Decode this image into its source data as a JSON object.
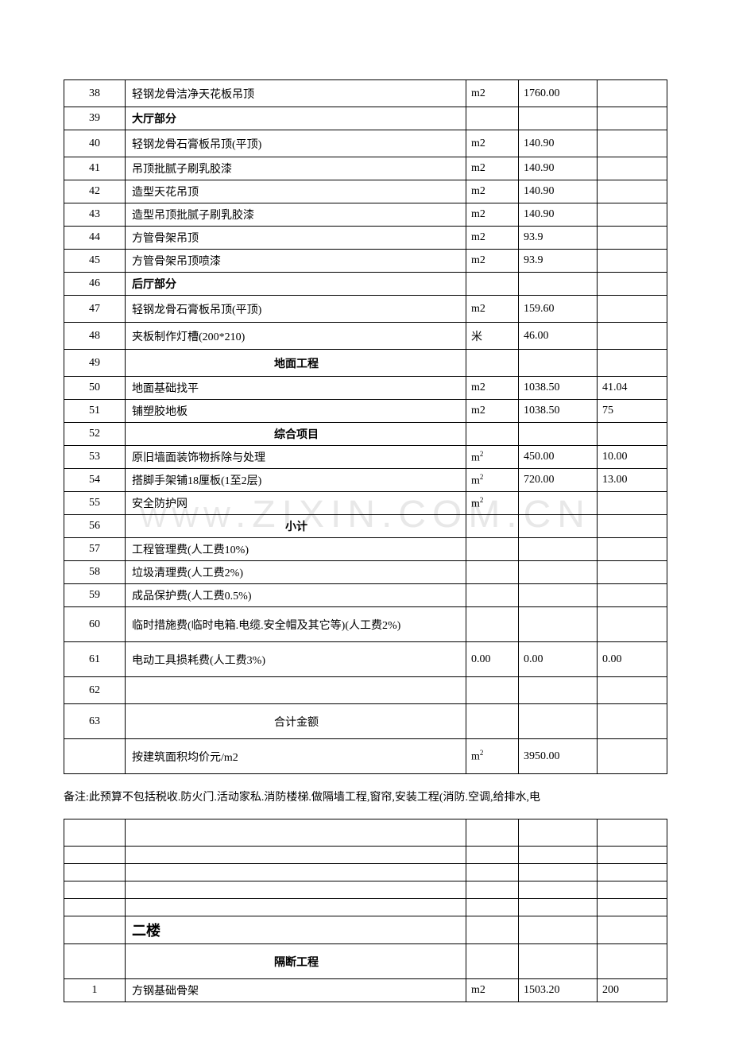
{
  "watermark": "WWW.ZIXIN.COM.CN",
  "table1": {
    "rows": [
      {
        "id": "38",
        "desc": "轻钢龙骨洁净天花板吊顶",
        "unit": "m2",
        "qty": "1760.00",
        "price": "",
        "h": "tall"
      },
      {
        "id": "39",
        "desc": "大厅部分",
        "unit": "",
        "qty": "",
        "price": "",
        "bold": true
      },
      {
        "id": "40",
        "desc": "轻钢龙骨石膏板吊顶(平顶)",
        "unit": "m2",
        "qty": "140.90",
        "price": "",
        "h": "tall"
      },
      {
        "id": "41",
        "desc": "吊顶批腻子刷乳胶漆",
        "unit": "m2",
        "qty": "140.90",
        "price": ""
      },
      {
        "id": "42",
        "desc": "造型天花吊顶",
        "unit": "m2",
        "qty": "140.90",
        "price": ""
      },
      {
        "id": "43",
        "desc": "造型吊顶批腻子刷乳胶漆",
        "unit": "m2",
        "qty": "140.90",
        "price": ""
      },
      {
        "id": "44",
        "desc": "方管骨架吊顶",
        "unit": "m2",
        "qty": "93.9",
        "price": ""
      },
      {
        "id": "45",
        "desc": "方管骨架吊顶喷漆",
        "unit": "m2",
        "qty": "93.9",
        "price": ""
      },
      {
        "id": "46",
        "desc": "后厅部分",
        "unit": "",
        "qty": "",
        "price": "",
        "bold": true
      },
      {
        "id": "47",
        "desc": "轻钢龙骨石膏板吊顶(平顶)",
        "unit": "m2",
        "qty": "159.60",
        "price": "",
        "h": "tall"
      },
      {
        "id": "48",
        "desc": "夹板制作灯槽(200*210)",
        "unit": "米",
        "qty": "46.00",
        "price": "",
        "h": "tall"
      },
      {
        "id": "49",
        "desc": "地面工程",
        "unit": "",
        "qty": "",
        "price": "",
        "center": true,
        "bold": true,
        "h": "tall"
      },
      {
        "id": "50",
        "desc": "地面基础找平",
        "unit": "m2",
        "qty": "1038.50",
        "price": "41.04"
      },
      {
        "id": "51",
        "desc": "铺塑胶地板",
        "unit": "m2",
        "qty": "1038.50",
        "price": "75"
      },
      {
        "id": "52",
        "desc": "综合项目",
        "unit": "",
        "qty": "",
        "price": "",
        "center": true,
        "bold": true
      },
      {
        "id": "53",
        "desc": "原旧墙面装饰物拆除与处理",
        "unit": "m²",
        "qty": "450.00",
        "price": "10.00"
      },
      {
        "id": "54",
        "desc": "搭脚手架铺18厘板(1至2层)",
        "unit": "m²",
        "qty": "720.00",
        "price": "13.00"
      },
      {
        "id": "55",
        "desc": "安全防护网",
        "unit": "m²",
        "qty": "",
        "price": ""
      },
      {
        "id": "56",
        "desc": "小计",
        "unit": "",
        "qty": "",
        "price": "",
        "center": true,
        "bold": true
      },
      {
        "id": "57",
        "desc": "工程管理费(人工费10%)",
        "unit": "",
        "qty": "",
        "price": ""
      },
      {
        "id": "58",
        "desc": "垃圾清理费(人工费2%)",
        "unit": "",
        "qty": "",
        "price": ""
      },
      {
        "id": "59",
        "desc": "成品保护费(人工费0.5%)",
        "unit": "",
        "qty": "",
        "price": ""
      },
      {
        "id": "60",
        "desc": "临时措施费(临时电箱.电缆.安全帽及其它等)(人工费2%)",
        "unit": "",
        "qty": "",
        "price": "",
        "h": "taller"
      },
      {
        "id": "61",
        "desc": "电动工具损耗费(人工费3%)",
        "unit": "0.00",
        "qty": "0.00",
        "price": "0.00",
        "h": "taller"
      },
      {
        "id": "62",
        "desc": "",
        "unit": "",
        "qty": "",
        "price": "",
        "h": "tall"
      },
      {
        "id": "63",
        "desc": "合计金额",
        "unit": "",
        "qty": "",
        "price": "",
        "center": true,
        "h": "taller"
      },
      {
        "id": "",
        "desc": "按建筑面积均价元/m2",
        "unit": "m²",
        "qty": "3950.00",
        "price": "",
        "h": "taller"
      }
    ]
  },
  "note": "备注:此预算不包括税收.防火门.活动家私.消防楼梯.做隔墙工程,窗帘,安装工程(消防.空调,给排水,电",
  "table2": {
    "rows": [
      {
        "id": "",
        "desc": "",
        "unit": "",
        "qty": "",
        "price": "",
        "h": "tall"
      },
      {
        "id": "",
        "desc": "",
        "unit": "",
        "qty": "",
        "price": ""
      },
      {
        "id": "",
        "desc": "",
        "unit": "",
        "qty": "",
        "price": ""
      },
      {
        "id": "",
        "desc": "",
        "unit": "",
        "qty": "",
        "price": ""
      },
      {
        "id": "",
        "desc": "",
        "unit": "",
        "qty": "",
        "price": ""
      },
      {
        "id": "",
        "desc": "二楼",
        "unit": "",
        "qty": "",
        "price": "",
        "bold": true,
        "fs": "18",
        "h": "tall"
      },
      {
        "id": "",
        "desc": "隔断工程",
        "unit": "",
        "qty": "",
        "price": "",
        "center": true,
        "bold": true,
        "h": "taller"
      },
      {
        "id": "1",
        "desc": "方钢基础骨架",
        "unit": "m2",
        "qty": "1503.20",
        "price": "200"
      }
    ]
  }
}
